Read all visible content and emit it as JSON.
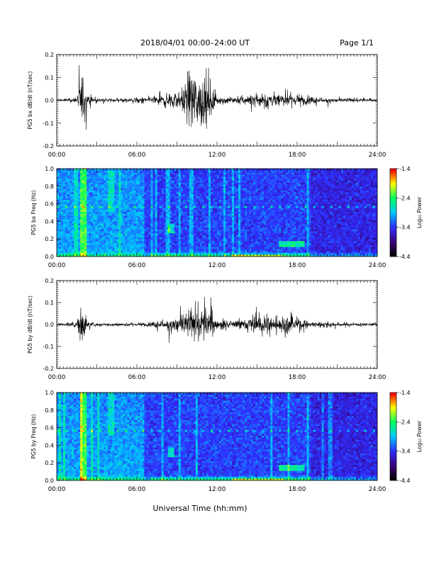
{
  "header": {
    "title": "2018/04/01   00:00–24:00 UT",
    "page": "Page 1/1"
  },
  "chart_data": [
    {
      "type": "line",
      "ylabel": "PG5 bx dB/dt (nT/sec)",
      "xlim": [
        "00:00",
        "24:00"
      ],
      "ylim": [
        -0.2,
        0.2
      ],
      "x_ticks": [
        "00:00",
        "06:00",
        "12:00",
        "18:00",
        "24:00"
      ],
      "y_ticks": [
        "-0.2",
        "-0.1",
        "0.0",
        "0.1",
        "0.2"
      ],
      "envelope": {
        "x_hours": [
          0,
          1.5,
          1.9,
          2.3,
          3,
          5,
          7,
          8.5,
          9.5,
          10,
          11.5,
          12,
          14,
          15,
          16,
          17,
          18,
          19,
          21,
          24
        ],
        "amplitude": [
          0.01,
          0.015,
          0.2,
          0.04,
          0.015,
          0.015,
          0.02,
          0.06,
          0.08,
          0.2,
          0.15,
          0.03,
          0.03,
          0.06,
          0.06,
          0.05,
          0.05,
          0.025,
          0.015,
          0.01
        ]
      },
      "color": "#000000"
    },
    {
      "type": "heatmap",
      "ylabel": "PG5 bx Freq (Hz)",
      "xlim": [
        "00:00",
        "24:00"
      ],
      "ylim": [
        0,
        1.0
      ],
      "x_ticks": [
        "00:00",
        "06:00",
        "12:00",
        "18:00",
        "24:00"
      ],
      "y_ticks": [
        "0.0",
        "0.2",
        "0.4",
        "0.6",
        "0.8",
        "1.0"
      ],
      "colorbar": {
        "label": "Log₁₀ Power",
        "ticks": [
          "-1.4",
          "-2.4",
          "-3.4",
          "-4.4"
        ],
        "range": [
          -4.4,
          -1.4
        ],
        "colors": [
          "#000000",
          "#3a007a",
          "#2f2fff",
          "#00c8ff",
          "#00ff60",
          "#ffff00",
          "#ff0000"
        ]
      }
    },
    {
      "type": "line",
      "ylabel": "PG5 by dB/dt (nT/sec)",
      "xlim": [
        "00:00",
        "24:00"
      ],
      "ylim": [
        -0.2,
        0.2
      ],
      "x_ticks": [
        "00:00",
        "06:00",
        "12:00",
        "18:00",
        "24:00"
      ],
      "y_ticks": [
        "-0.2",
        "-0.1",
        "0.0",
        "0.1",
        "0.2"
      ],
      "envelope": {
        "x_hours": [
          0,
          1.5,
          1.9,
          2.3,
          3,
          5,
          7,
          8.5,
          10,
          11.5,
          12,
          14,
          15,
          16,
          17,
          18,
          19,
          21,
          24
        ],
        "amplitude": [
          0.01,
          0.02,
          0.17,
          0.03,
          0.012,
          0.012,
          0.015,
          0.05,
          0.1,
          0.13,
          0.04,
          0.04,
          0.09,
          0.07,
          0.06,
          0.05,
          0.025,
          0.015,
          0.01
        ]
      },
      "color": "#000000"
    },
    {
      "type": "heatmap",
      "ylabel": "PG5 by Freq (Hz)",
      "xlim": [
        "00:00",
        "24:00"
      ],
      "ylim": [
        0,
        1.0
      ],
      "x_ticks": [
        "00:00",
        "06:00",
        "12:00",
        "18:00",
        "24:00"
      ],
      "y_ticks": [
        "0.0",
        "0.2",
        "0.4",
        "0.6",
        "0.8",
        "1.0"
      ],
      "colorbar": {
        "label": "Log₁₀ Power",
        "ticks": [
          "-1.4",
          "-2.4",
          "-3.4",
          "-4.4"
        ],
        "range": [
          -4.4,
          -1.4
        ],
        "colors": [
          "#000000",
          "#3a007a",
          "#2f2fff",
          "#00c8ff",
          "#00ff60",
          "#ffff00",
          "#ff0000"
        ]
      }
    }
  ],
  "footer": {
    "xlabel": "Universal Time (hh:mm)"
  }
}
